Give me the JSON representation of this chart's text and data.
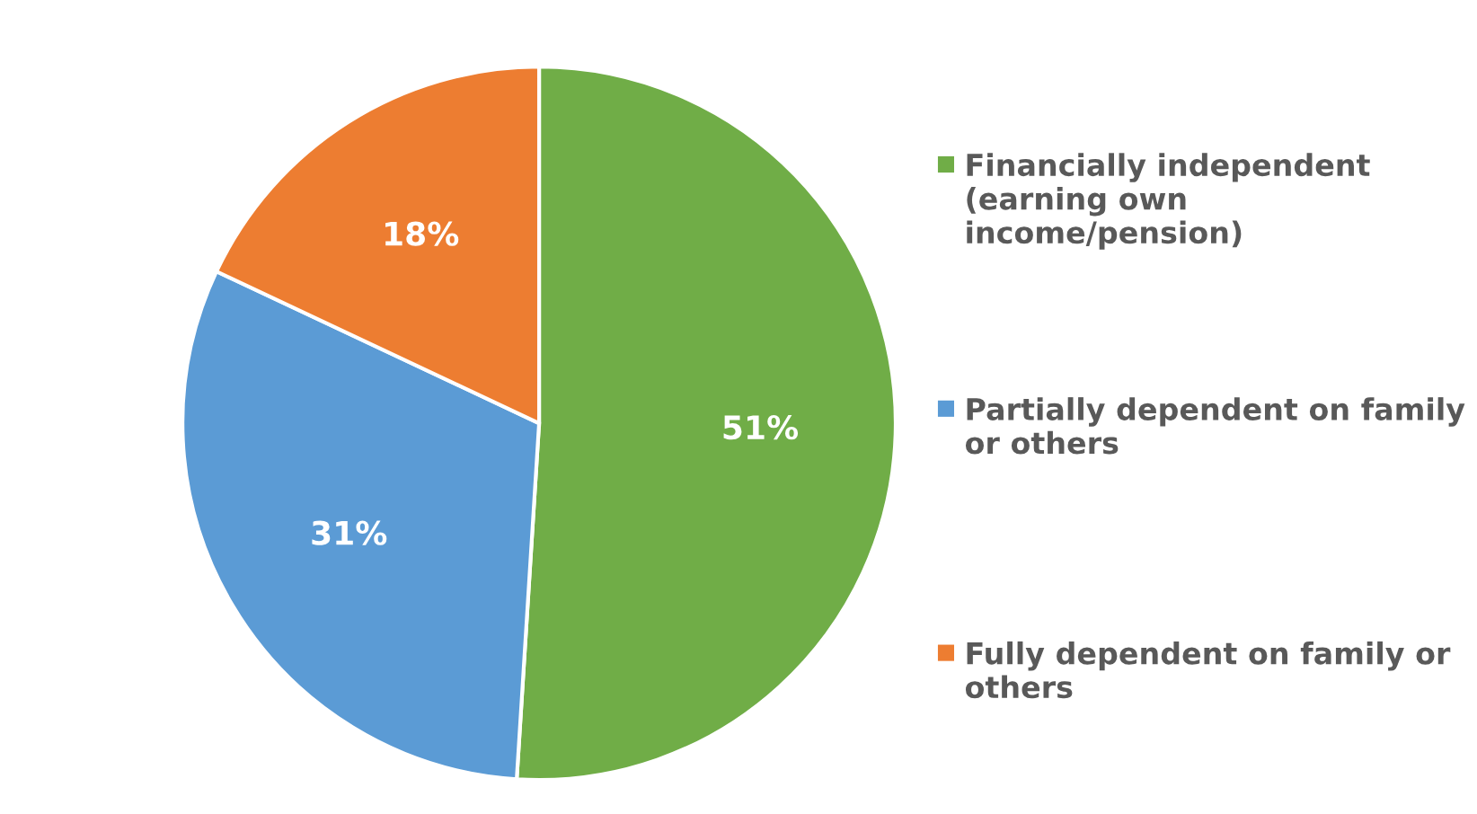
{
  "chart_data": {
    "type": "pie",
    "categories": [
      "Financially independent (earning own income/pension)",
      "Partially dependent on family or others",
      "Fully dependent on family or others"
    ],
    "values": [
      51,
      31,
      18
    ],
    "colors": [
      "#70ad47",
      "#5b9bd5",
      "#ed7d31"
    ],
    "value_labels": [
      "51%",
      "31%",
      "18%"
    ],
    "legend": "right"
  }
}
